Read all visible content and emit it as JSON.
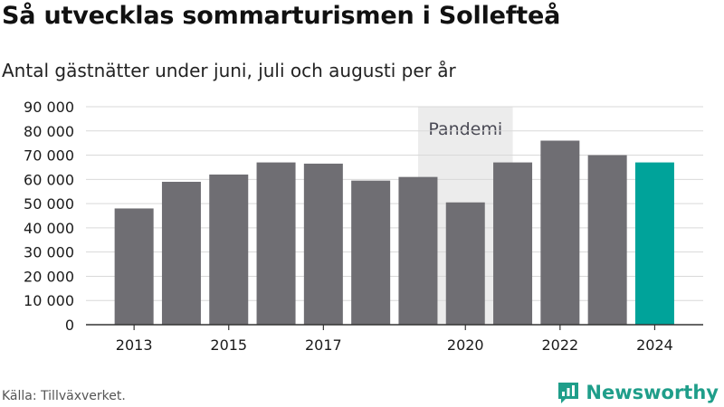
{
  "header": {
    "title": "Så utvecklas sommarturismen i Sollefteå",
    "subtitle": "Antal gästnätter under juni, juli och augusti per år"
  },
  "footer": {
    "source": "Källa: Tillväxverket.",
    "brand": "Newsworthy",
    "brand_icon": "newsworthy-logo-icon"
  },
  "colors": {
    "bar": "#6f6e73",
    "highlight": "#00a39a",
    "band": "#ececec",
    "grid": "#d9d9d9",
    "brand": "#1f9e8a"
  },
  "chart_data": {
    "type": "bar",
    "categories": [
      "2013",
      "2014",
      "2015",
      "2016",
      "2017",
      "2018",
      "2019",
      "2020",
      "2021",
      "2022",
      "2023",
      "2024"
    ],
    "values": [
      48000,
      59000,
      62000,
      67000,
      66500,
      59500,
      61000,
      50500,
      67000,
      76000,
      70000,
      67000
    ],
    "highlight_category": "2024",
    "ylim": [
      0,
      90000
    ],
    "yticks": [
      0,
      10000,
      20000,
      30000,
      40000,
      50000,
      60000,
      70000,
      80000,
      90000
    ],
    "ytick_labels": [
      "0",
      "10 000",
      "20 000",
      "30 000",
      "40 000",
      "50 000",
      "60 000",
      "70 000",
      "80 000",
      "90 000"
    ],
    "xtick_labels": [
      {
        "category": "2013",
        "label": "2013"
      },
      {
        "category": "2015",
        "label": "2015"
      },
      {
        "category": "2017",
        "label": "2017"
      },
      {
        "category": "2020",
        "label": "2020"
      },
      {
        "category": "2022",
        "label": "2022"
      },
      {
        "category": "2024",
        "label": "2024"
      }
    ],
    "annotation": {
      "label": "Pandemi",
      "from": "2019",
      "to": "2021"
    },
    "xlabel": "",
    "ylabel": "",
    "grid": true
  }
}
